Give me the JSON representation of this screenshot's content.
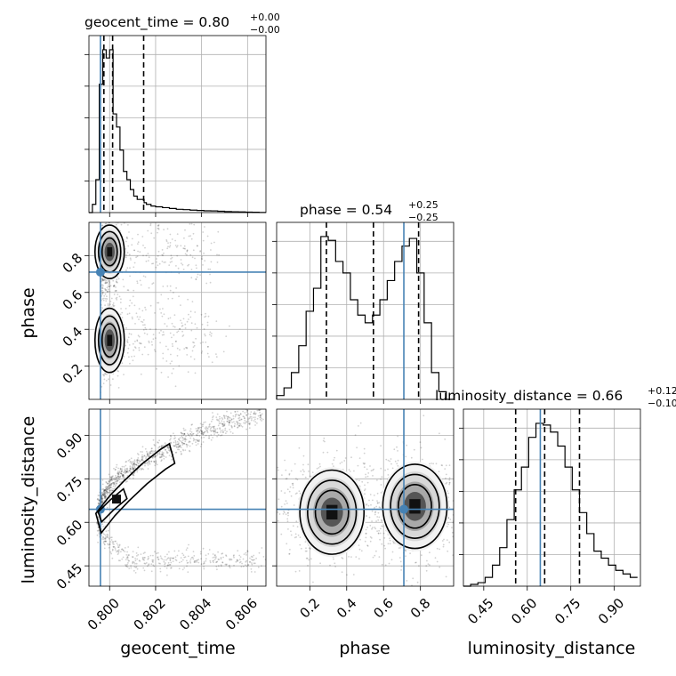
{
  "chart_data": {
    "type": "corner",
    "parameters": [
      "geocent_time",
      "phase",
      "luminosity_distance"
    ],
    "axis_labels": {
      "geocent_time": "geocent_time",
      "phase": "phase",
      "luminosity_distance": "luminosity_distance"
    },
    "titles": [
      {
        "param": "geocent_time",
        "text": "geocent_time = 0.80",
        "sup": "+0.00",
        "sub": "−0.00"
      },
      {
        "param": "phase",
        "text": "phase = 0.54",
        "sup": "+0.25",
        "sub": "−0.25"
      },
      {
        "param": "luminosity_distance",
        "text": "luminosity_distance = 0.66",
        "sup": "+0.12",
        "sub": "−0.10"
      }
    ],
    "ranges": {
      "geocent_time": [
        0.7991,
        0.8068
      ],
      "phase": [
        0.02,
        0.98
      ],
      "luminosity_distance": [
        0.38,
        0.99
      ]
    },
    "ticks": {
      "geocent_time": {
        "values": [
          0.8,
          0.802,
          0.804,
          0.806
        ],
        "labels": [
          "0.800",
          "0.802",
          "0.804",
          "0.806"
        ]
      },
      "phase": {
        "values": [
          0.2,
          0.4,
          0.6,
          0.8
        ],
        "labels": [
          "0.2",
          "0.4",
          "0.6",
          "0.8"
        ]
      },
      "luminosity_distance": {
        "values": [
          0.45,
          0.6,
          0.75,
          0.9
        ],
        "labels": [
          "0.45",
          "0.60",
          "0.75",
          "0.90"
        ]
      }
    },
    "truths": {
      "geocent_time": 0.7996,
      "phase": 0.71,
      "luminosity_distance": 0.645
    },
    "quantiles": {
      "geocent_time": [
        0.79975,
        0.80013,
        0.80148
      ],
      "phase": [
        0.29,
        0.545,
        0.79
      ],
      "luminosity_distance": [
        0.56,
        0.66,
        0.78
      ]
    },
    "histograms": {
      "geocent_time": {
        "bins": [
          0.7991,
          0.79925,
          0.7994,
          0.79955,
          0.7997,
          0.79985,
          0.8,
          0.80015,
          0.8003,
          0.80045,
          0.8006,
          0.80075,
          0.8009,
          0.80105,
          0.8012,
          0.80135,
          0.8015,
          0.8016,
          0.8018,
          0.802,
          0.8023,
          0.8026,
          0.8029,
          0.8032,
          0.8035,
          0.8038,
          0.8041,
          0.8044,
          0.8047,
          0.805,
          0.8053,
          0.8056,
          0.8059,
          0.8062,
          0.8065,
          0.8068
        ],
        "counts": [
          0,
          5,
          20,
          78,
          99,
          94,
          99,
          60,
          52,
          38,
          25,
          20,
          14,
          10,
          8,
          8,
          6,
          5,
          4,
          3.5,
          3,
          2.5,
          2,
          1.8,
          1.5,
          1.3,
          1.1,
          1.0,
          0.8,
          0.6,
          0.5,
          0.4,
          0.3,
          0.2,
          0.1
        ]
      },
      "phase": {
        "edges_from": 0.02,
        "bin_width": 0.04,
        "counts": [
          2,
          6,
          14,
          28,
          46,
          58,
          85,
          83,
          72,
          66,
          52,
          44,
          40,
          44,
          52,
          62,
          72,
          80,
          84,
          66,
          40,
          14,
          4,
          0
        ]
      },
      "luminosity_distance": {
        "edges_from": 0.38,
        "bin_width": 0.025,
        "counts": [
          0,
          1,
          2,
          5,
          12,
          22,
          38,
          55,
          68,
          85,
          93,
          92,
          88,
          80,
          68,
          55,
          42,
          30,
          20,
          16,
          12,
          9,
          7,
          5
        ]
      }
    },
    "density_blobs": {
      "geocent_time_phase": [
        {
          "x": 0.8,
          "y": 0.82,
          "sx": 0.00022,
          "sy": 0.05,
          "w": 1.0
        },
        {
          "x": 0.8,
          "y": 0.34,
          "sx": 0.00022,
          "sy": 0.06,
          "w": 0.95
        }
      ],
      "phase_luminosity_distance": [
        {
          "x": 0.32,
          "y": 0.635,
          "sx": 0.06,
          "sy": 0.05,
          "w": 1.0
        },
        {
          "x": 0.77,
          "y": 0.655,
          "sx": 0.06,
          "sy": 0.05,
          "w": 1.0
        }
      ]
    }
  }
}
